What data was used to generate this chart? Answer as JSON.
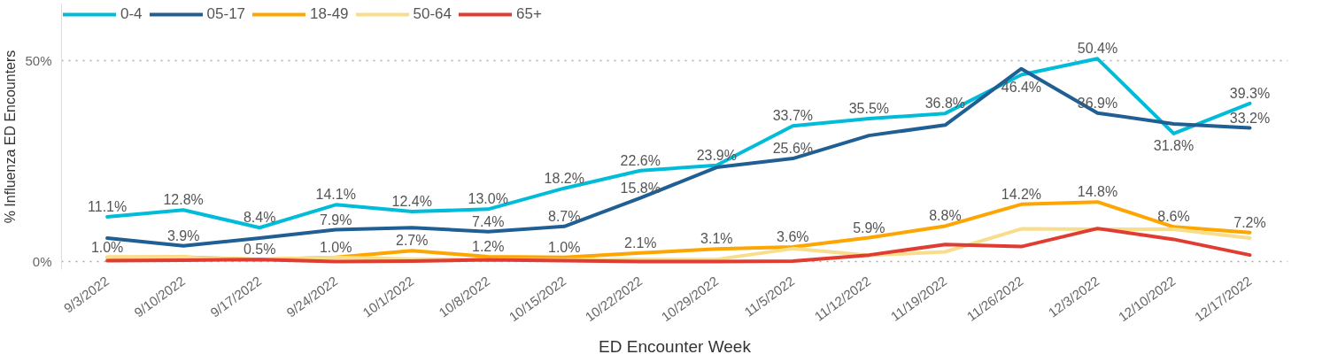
{
  "chart_data": {
    "type": "line",
    "xlabel": "ED Encounter Week",
    "ylabel": "% Influenza ED Encounters",
    "categories": [
      "9/3/2022",
      "9/10/2022",
      "9/17/2022",
      "9/24/2022",
      "10/1/2022",
      "10/8/2022",
      "10/15/2022",
      "10/22/2022",
      "10/29/2022",
      "11/5/2022",
      "11/12/2022",
      "11/19/2022",
      "11/26/2022",
      "12/3/2022",
      "12/10/2022",
      "12/17/2022"
    ],
    "ylim": [
      -2,
      64
    ],
    "yticks": [
      {
        "value": 0,
        "label": "0%"
      },
      {
        "value": 50,
        "label": "50%"
      }
    ],
    "grid": "y",
    "legend": "top left",
    "series": [
      {
        "name": "0-4",
        "color": "#00bcd9",
        "values": [
          11.1,
          12.8,
          8.4,
          14.1,
          12.4,
          13.0,
          18.2,
          22.6,
          23.9,
          33.7,
          35.5,
          36.8,
          46.4,
          50.4,
          31.8,
          39.3
        ],
        "value_labels": [
          "11.1%",
          "12.8%",
          "8.4%",
          "14.1%",
          "12.4%",
          "13.0%",
          "18.2%",
          "22.6%",
          "23.9%",
          "33.7%",
          "35.5%",
          "36.8%",
          "46.4%",
          "50.4%",
          "31.8%",
          "39.3%"
        ]
      },
      {
        "name": "05-17",
        "color": "#1f5f93",
        "values": [
          5.8,
          3.9,
          5.8,
          7.9,
          8.4,
          7.4,
          8.7,
          15.8,
          23.4,
          25.6,
          31.3,
          33.9,
          47.9,
          36.9,
          34.2,
          33.2
        ],
        "value_labels": [
          null,
          "3.9%",
          null,
          "7.9%",
          null,
          "7.4%",
          "8.7%",
          "15.8%",
          null,
          "25.6%",
          null,
          null,
          null,
          "36.9%",
          null,
          "33.2%"
        ]
      },
      {
        "name": "18-49",
        "color": "#fda500",
        "values": [
          1.0,
          1.1,
          0.5,
          1.0,
          2.7,
          1.2,
          1.0,
          2.1,
          3.1,
          3.6,
          5.9,
          8.8,
          14.2,
          14.8,
          8.6,
          7.2
        ],
        "value_labels": [
          "1.0%",
          null,
          "0.5%",
          "1.0%",
          "2.7%",
          "1.2%",
          "1.0%",
          "2.1%",
          "3.1%",
          "3.6%",
          "5.9%",
          "8.8%",
          "14.2%",
          "14.8%",
          "8.6%",
          "7.2%"
        ]
      },
      {
        "name": "50-64",
        "color": "#f8dd8c",
        "values": [
          1.1,
          1.0,
          0.5,
          1.0,
          0.6,
          0.5,
          0.4,
          0.5,
          0.5,
          3.2,
          1.5,
          2.4,
          8.1,
          8.0,
          8.0,
          5.8
        ]
      },
      {
        "name": "65+",
        "color": "#e03c31",
        "values": [
          0.2,
          0.3,
          0.5,
          0.0,
          0.1,
          0.4,
          0.2,
          0.0,
          0.0,
          0.1,
          1.6,
          4.2,
          3.7,
          8.2,
          5.5,
          1.6
        ]
      }
    ]
  }
}
